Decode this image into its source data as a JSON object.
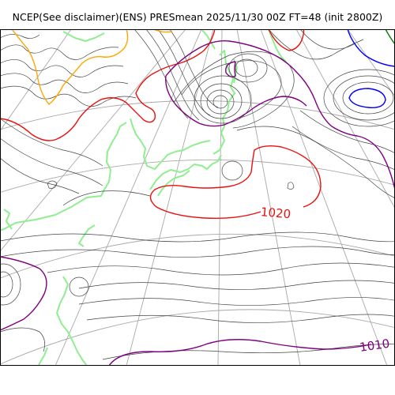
{
  "title": "NCEP(See disclaimer)(ENS) PRESmean 2025/11/30 00Z FT=48 (init 2800Z)",
  "colors": {
    "background": "#ffffff",
    "frame": "#000000",
    "isobar": "#444444",
    "graticule": "#a8a8a8",
    "coastline": "#90ee90",
    "contour_1020": "#e8110f",
    "contour_1010": "#800080",
    "contour_1030": "#ffa500",
    "contour_1000": "#0000ff",
    "contour_990": "#008000"
  },
  "contour_labels": [
    {
      "text": "1020",
      "color": "#e8110f"
    },
    {
      "text": "1010",
      "color": "#800080"
    }
  ]
}
